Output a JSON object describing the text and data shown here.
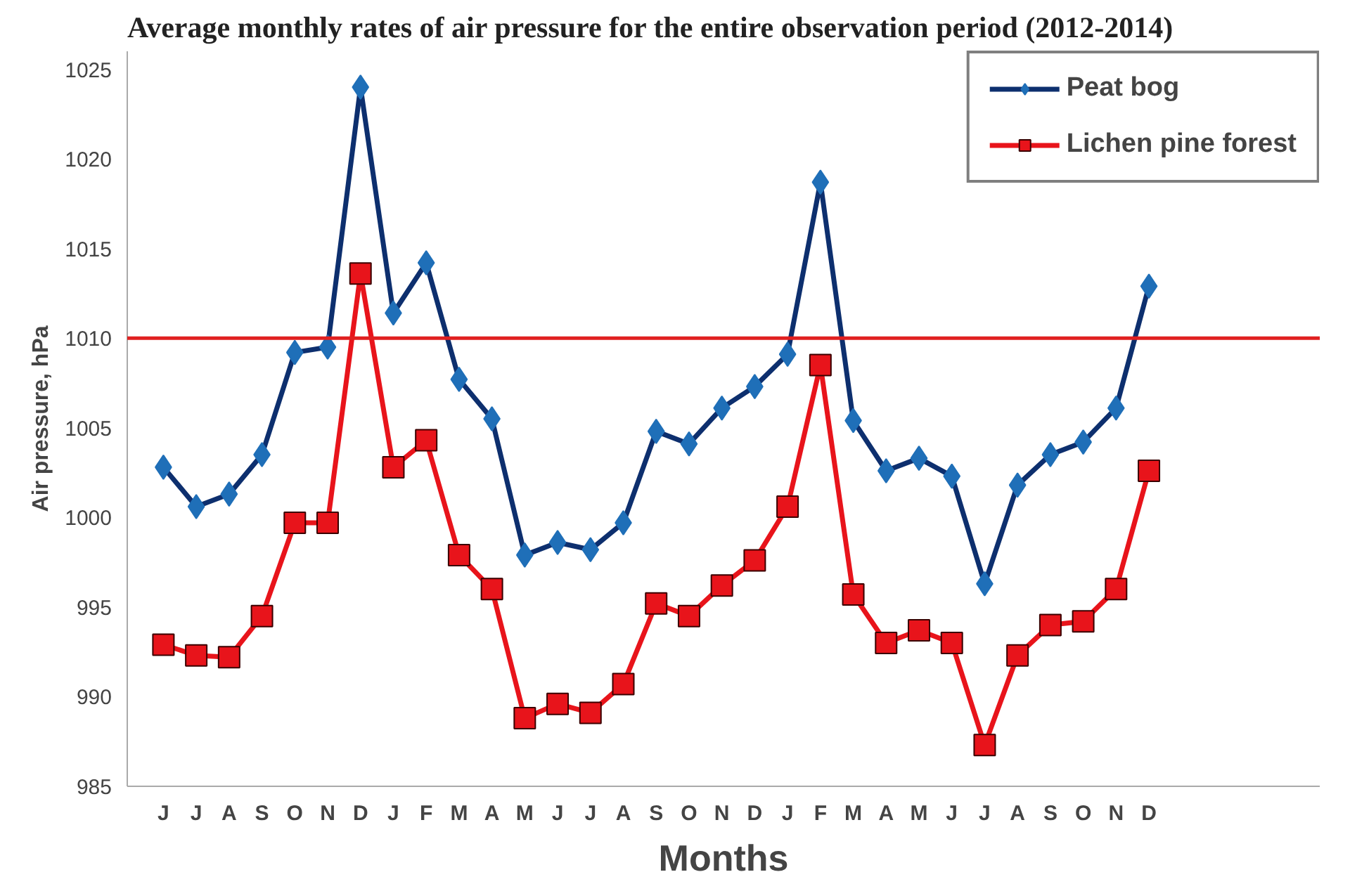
{
  "chart_data": {
    "type": "line",
    "title": "Average monthly rates of air pressure for the entire observation period (2012-2014)",
    "xlabel": "Months",
    "ylabel": "Air pressure, hPa",
    "categories": [
      "J",
      "J",
      "A",
      "S",
      "O",
      "N",
      "D",
      "J",
      "F",
      "M",
      "A",
      "M",
      "J",
      "J",
      "A",
      "S",
      "O",
      "N",
      "D",
      "J",
      "F",
      "M",
      "A",
      "M",
      "J",
      "J",
      "A",
      "S",
      "O",
      "N",
      "D"
    ],
    "series": [
      {
        "name": "Peat bog",
        "color": "#1f6fb8",
        "marker": "diamond",
        "values": [
          1002.8,
          1000.6,
          1001.3,
          1003.5,
          1009.2,
          1009.5,
          1024.0,
          1011.4,
          1014.2,
          1007.7,
          1005.5,
          997.9,
          998.6,
          998.2,
          999.7,
          1004.8,
          1004.1,
          1006.1,
          1007.3,
          1009.1,
          1018.7,
          1005.4,
          1002.6,
          1003.3,
          1002.3,
          996.3,
          1001.8,
          1003.5,
          1004.2,
          1006.1,
          1012.9
        ]
      },
      {
        "name": "Lichen pine forest",
        "color": "#e8141b",
        "marker": "square",
        "values": [
          992.9,
          992.3,
          992.2,
          994.5,
          999.7,
          999.7,
          1013.6,
          1002.8,
          1004.3,
          997.9,
          996.0,
          988.8,
          989.6,
          989.1,
          990.7,
          995.2,
          994.5,
          996.2,
          997.6,
          1000.6,
          1008.5,
          995.7,
          993.0,
          993.7,
          993.0,
          987.3,
          992.3,
          994.0,
          994.2,
          996.0,
          1002.6
        ]
      }
    ],
    "ylim": [
      985,
      1026
    ],
    "yticks": [
      985,
      990,
      995,
      1000,
      1005,
      1010,
      1015,
      1020,
      1025
    ],
    "ref_lines": [
      {
        "axis": "y",
        "value": 1010,
        "color": "#e02020"
      }
    ],
    "grid": false,
    "legend": "top right",
    "line_style": "solid"
  }
}
